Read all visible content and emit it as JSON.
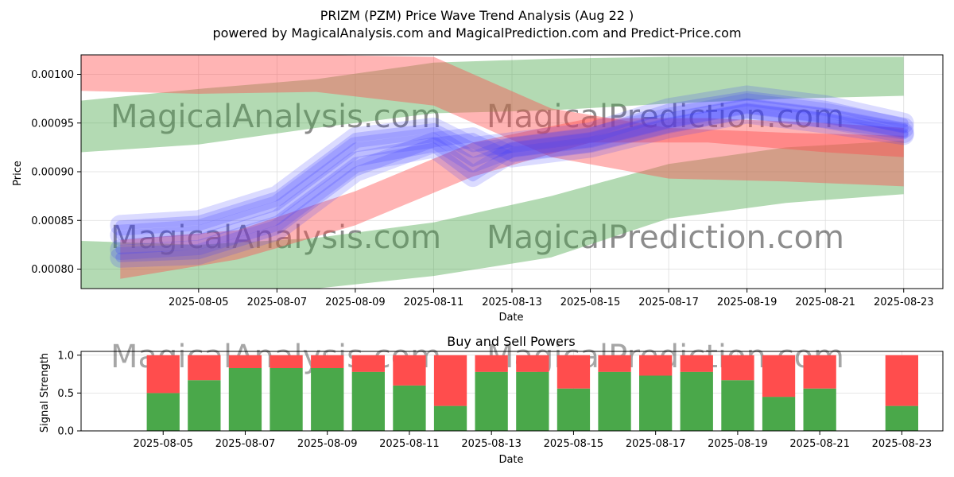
{
  "title_line1": "PRIZM (PZM) Price Wave Trend Analysis (Aug 22 )",
  "title_line2": "powered by MagicalAnalysis.com and MagicalPrediction.com and Predict-Price.com",
  "watermarks": [
    "MagicalAnalysis.com",
    "MagicalPrediction.com"
  ],
  "colors": {
    "green": "#4aa84a",
    "red": "#ff4d4d",
    "blue": "#3a3aff",
    "grid": "#dddddd"
  },
  "chart_data": [
    {
      "type": "area",
      "title": "",
      "xlabel": "Date",
      "ylabel": "Price",
      "x_ticks": [
        "2025-08-05",
        "2025-08-07",
        "2025-08-09",
        "2025-08-11",
        "2025-08-13",
        "2025-08-15",
        "2025-08-17",
        "2025-08-19",
        "2025-08-21",
        "2025-08-23"
      ],
      "y_ticks": [
        "0.00080",
        "0.00085",
        "0.00090",
        "0.00095",
        "0.00100"
      ],
      "xlim": [
        "2025-08-02",
        "2025-08-24"
      ],
      "ylim": [
        0.00078,
        0.00102
      ],
      "grid": true,
      "bands": [
        {
          "name": "",
          "color": "green",
          "dates": [
            "2025-08-02",
            "2025-08-05",
            "2025-08-08",
            "2025-08-11",
            "2025-08-14",
            "2025-08-17",
            "2025-08-20",
            "2025-08-23"
          ],
          "upper": [
            0.000973,
            0.000985,
            0.000995,
            0.001012,
            0.001016,
            0.001018,
            0.001018,
            0.001018
          ],
          "lower": [
            0.00092,
            0.000928,
            0.000945,
            0.00096,
            0.000963,
            0.00097,
            0.000975,
            0.000978
          ]
        },
        {
          "name": "",
          "color": "green",
          "dates": [
            "2025-08-02",
            "2025-08-05",
            "2025-08-08",
            "2025-08-11",
            "2025-08-14",
            "2025-08-17",
            "2025-08-20",
            "2025-08-23"
          ],
          "upper": [
            0.000829,
            0.000825,
            0.000832,
            0.000848,
            0.000875,
            0.000908,
            0.000925,
            0.000932
          ],
          "lower": [
            0.000779,
            0.000772,
            0.00078,
            0.000793,
            0.000812,
            0.000852,
            0.000868,
            0.000877
          ]
        },
        {
          "name": "",
          "color": "red",
          "dates": [
            "2025-08-02",
            "2025-08-05",
            "2025-08-08",
            "2025-08-11",
            "2025-08-14",
            "2025-08-17",
            "2025-08-20",
            "2025-08-23"
          ],
          "upper": [
            0.00102,
            0.00102,
            0.00102,
            0.001018,
            0.000965,
            0.000945,
            0.00094,
            0.000937
          ],
          "lower": [
            0.000983,
            0.00098,
            0.000982,
            0.000968,
            0.000915,
            0.000893,
            0.00089,
            0.000885
          ]
        },
        {
          "name": "",
          "color": "red",
          "dates": [
            "2025-08-03",
            "2025-08-06",
            "2025-08-09",
            "2025-08-12",
            "2025-08-15",
            "2025-08-18",
            "2025-08-21",
            "2025-08-23"
          ],
          "upper": [
            0.00083,
            0.00084,
            0.00088,
            0.00093,
            0.000955,
            0.000955,
            0.00095,
            0.000945
          ],
          "lower": [
            0.00079,
            0.00081,
            0.000845,
            0.000895,
            0.00093,
            0.00093,
            0.00092,
            0.000915
          ]
        }
      ],
      "series": [
        {
          "name": "",
          "dates": [
            "2025-08-03",
            "2025-08-05",
            "2025-08-07",
            "2025-08-09",
            "2025-08-11",
            "2025-08-12",
            "2025-08-13",
            "2025-08-15",
            "2025-08-17",
            "2025-08-19",
            "2025-08-21",
            "2025-08-23"
          ],
          "values": [
            0.000845,
            0.00085,
            0.000875,
            0.000935,
            0.000945,
            0.000925,
            0.00093,
            0.00094,
            0.000965,
            0.000978,
            0.000968,
            0.00095
          ]
        },
        {
          "name": "",
          "dates": [
            "2025-08-03",
            "2025-08-05",
            "2025-08-07",
            "2025-08-09",
            "2025-08-11",
            "2025-08-12",
            "2025-08-13",
            "2025-08-15",
            "2025-08-17",
            "2025-08-19",
            "2025-08-21",
            "2025-08-23"
          ],
          "values": [
            0.000835,
            0.00084,
            0.000865,
            0.000925,
            0.000935,
            0.00091,
            0.000925,
            0.000935,
            0.000955,
            0.00097,
            0.00096,
            0.000945
          ]
        },
        {
          "name": "",
          "dates": [
            "2025-08-03",
            "2025-08-05",
            "2025-08-07",
            "2025-08-09",
            "2025-08-11",
            "2025-08-12",
            "2025-08-13",
            "2025-08-15",
            "2025-08-17",
            "2025-08-19",
            "2025-08-21",
            "2025-08-23"
          ],
          "values": [
            0.00082,
            0.000825,
            0.00085,
            0.00091,
            0.000925,
            0.000895,
            0.00092,
            0.00093,
            0.00095,
            0.000965,
            0.000955,
            0.00094
          ]
        },
        {
          "name": "",
          "dates": [
            "2025-08-03",
            "2025-08-05",
            "2025-08-07",
            "2025-08-09",
            "2025-08-11",
            "2025-08-12",
            "2025-08-13",
            "2025-08-15",
            "2025-08-17",
            "2025-08-19",
            "2025-08-21",
            "2025-08-23"
          ],
          "values": [
            0.000812,
            0.000815,
            0.00084,
            0.0009,
            0.00093,
            0.000935,
            0.000915,
            0.000925,
            0.000945,
            0.00096,
            0.00095,
            0.000938
          ]
        }
      ]
    },
    {
      "type": "bar",
      "title": "Buy and Sell Powers",
      "xlabel": "Date",
      "ylabel": "Signal Strength",
      "x_ticks": [
        "2025-08-05",
        "2025-08-07",
        "2025-08-09",
        "2025-08-11",
        "2025-08-13",
        "2025-08-15",
        "2025-08-17",
        "2025-08-19",
        "2025-08-21",
        "2025-08-23"
      ],
      "y_ticks": [
        "0.0",
        "0.5",
        "1.0"
      ],
      "xlim": [
        "2025-08-03",
        "2025-08-24"
      ],
      "ylim": [
        0,
        1.05
      ],
      "grid": true,
      "categories": [
        "2025-08-05",
        "2025-08-06",
        "2025-08-07",
        "2025-08-08",
        "2025-08-09",
        "2025-08-10",
        "2025-08-11",
        "2025-08-12",
        "2025-08-13",
        "2025-08-14",
        "2025-08-15",
        "2025-08-16",
        "2025-08-17",
        "2025-08-18",
        "2025-08-19",
        "2025-08-20",
        "2025-08-21",
        "2025-08-23"
      ],
      "series": [
        {
          "name": "",
          "color": "green",
          "values": [
            0.5,
            0.67,
            0.83,
            0.83,
            0.83,
            0.78,
            0.6,
            0.33,
            0.78,
            0.78,
            0.56,
            0.78,
            0.73,
            0.78,
            0.67,
            0.45,
            0.56,
            0.33
          ]
        },
        {
          "name": "",
          "color": "red",
          "values": [
            0.5,
            0.33,
            0.17,
            0.17,
            0.17,
            0.22,
            0.4,
            0.67,
            0.22,
            0.22,
            0.44,
            0.22,
            0.27,
            0.22,
            0.33,
            0.55,
            0.44,
            0.67
          ]
        }
      ]
    }
  ]
}
